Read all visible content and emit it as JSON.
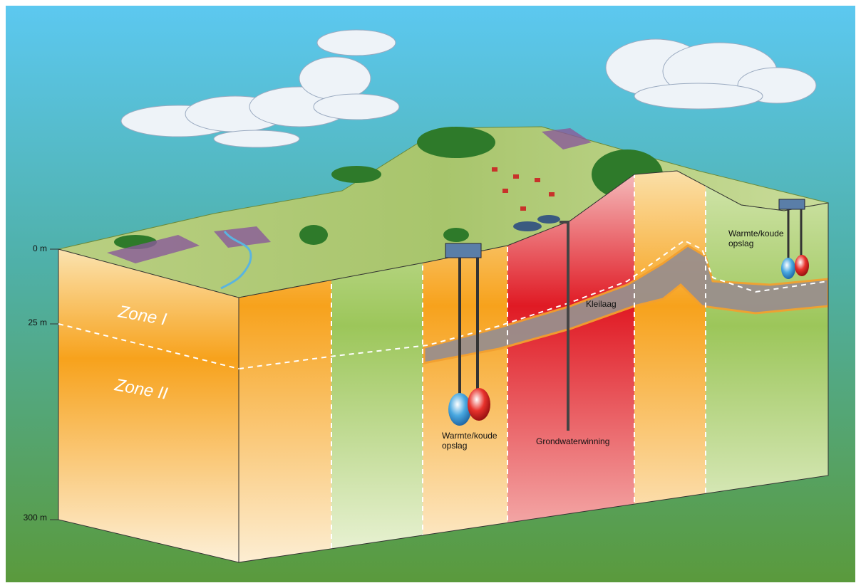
{
  "depth_labels": [
    "0 m",
    "25 m",
    "300 m"
  ],
  "zones": [
    "Zone I",
    "Zone II"
  ],
  "labels": {
    "kleilaag": "Kleilaag",
    "grondwaterwinning": "Grondwaterwinning",
    "wko_front": [
      "Warmte/koude",
      "opslag"
    ],
    "wko_back": [
      "Warmte/koude",
      "opslag"
    ]
  }
}
